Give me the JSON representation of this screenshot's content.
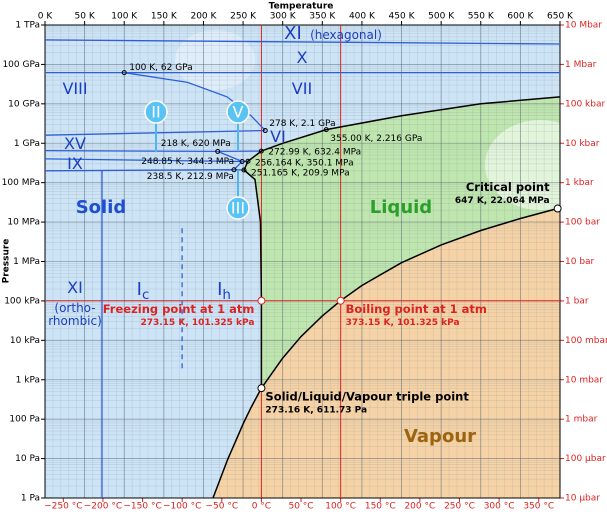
{
  "chart_data": {
    "type": "phase-diagram",
    "x_label": "Temperature",
    "y_label": "Pressure",
    "log_scale_y": true,
    "grid": true,
    "xlim": [
      0,
      650
    ],
    "xticks": [
      {
        "value": 0,
        "label": "0 K"
      },
      {
        "value": 50,
        "label": "50 K"
      },
      {
        "value": 100,
        "label": "100 K"
      },
      {
        "value": 150,
        "label": "150 K"
      },
      {
        "value": 200,
        "label": "200 K"
      },
      {
        "value": 250,
        "label": "250 K"
      },
      {
        "value": 300,
        "label": "300 K"
      },
      {
        "value": 350,
        "label": "350 K"
      },
      {
        "value": 400,
        "label": "400 K"
      },
      {
        "value": 450,
        "label": "450 K"
      },
      {
        "value": 500,
        "label": "500 K"
      },
      {
        "value": 550,
        "label": "550 K"
      },
      {
        "value": 600,
        "label": "600 K"
      },
      {
        "value": 650,
        "label": "650 K"
      }
    ],
    "x2lim": [
      -273.15,
      376.85
    ],
    "x2ticks": [
      {
        "value": -250,
        "label": "−250 °C"
      },
      {
        "value": -200,
        "label": "−200 °C"
      },
      {
        "value": -150,
        "label": "−150 °C"
      },
      {
        "value": -100,
        "label": "−100 °C"
      },
      {
        "value": -50,
        "label": "−50 °C"
      },
      {
        "value": 0,
        "label": "0 °C"
      },
      {
        "value": 50,
        "label": "50 °C"
      },
      {
        "value": 100,
        "label": "100 °C"
      },
      {
        "value": 150,
        "label": "150 °C"
      },
      {
        "value": 200,
        "label": "200 °C"
      },
      {
        "value": 250,
        "label": "250 °C"
      },
      {
        "value": 300,
        "label": "300 °C"
      },
      {
        "value": 350,
        "label": "350 °C"
      }
    ],
    "ylim": [
      1,
      1000000000000
    ],
    "yticks": [
      {
        "value": 1,
        "label": "1 Pa"
      },
      {
        "value": 10,
        "label": "10 Pa"
      },
      {
        "value": 100,
        "label": "100 Pa"
      },
      {
        "value": 1000,
        "label": "1 kPa"
      },
      {
        "value": 10000,
        "label": "10 kPa"
      },
      {
        "value": 100000,
        "label": "100 kPa"
      },
      {
        "value": 1000000,
        "label": "1 MPa"
      },
      {
        "value": 10000000,
        "label": "10 MPa"
      },
      {
        "value": 100000000,
        "label": "100 MPa"
      },
      {
        "value": 1000000000,
        "label": "1 GPa"
      },
      {
        "value": 10000000000,
        "label": "10 GPa"
      },
      {
        "value": 100000000000,
        "label": "100 GPa"
      },
      {
        "value": 1000000000000,
        "label": "1 TPa"
      }
    ],
    "y2lim": [
      1e-05,
      10000000
    ],
    "y2ticks": [
      {
        "value": 1e-05,
        "label": "10 µbar"
      },
      {
        "value": 0.0001,
        "label": "100 µbar"
      },
      {
        "value": 0.001,
        "label": "1 mbar"
      },
      {
        "value": 0.01,
        "label": "10 mbar"
      },
      {
        "value": 0.1,
        "label": "100 mbar"
      },
      {
        "value": 1,
        "label": "1 bar"
      },
      {
        "value": 10,
        "label": "10 bar"
      },
      {
        "value": 100,
        "label": "100 bar"
      },
      {
        "value": 1000,
        "label": "1 kbar"
      },
      {
        "value": 10000,
        "label": "10 kbar"
      },
      {
        "value": 100000,
        "label": "100 kbar"
      },
      {
        "value": 1000000,
        "label": "1 Mbar"
      },
      {
        "value": 10000000,
        "label": "10 Mbar"
      }
    ],
    "colors": {
      "solid": "#cde4f6",
      "liquid": "#bfe6ae",
      "vapour": "#f6d3a6",
      "boundary": "#000000",
      "phase_line": "#2f5fd8",
      "reference": "#dd2222"
    },
    "sublimation_curve": {
      "x": [
        212,
        230,
        250,
        260,
        273.16
      ],
      "y": [
        1,
        8.9,
        76,
        196,
        611.73
      ]
    },
    "boiling_curve": {
      "x": [
        273.16,
        300,
        323,
        350,
        373.15,
        400,
        450,
        500,
        550,
        600,
        647
      ],
      "y": [
        611.73,
        3537,
        12350,
        41680,
        101325,
        245800,
        932000,
        2640000,
        6120000,
        12300000,
        22064000
      ]
    },
    "melting_curve": {
      "x": [
        273.16,
        273.15,
        272,
        265,
        251.165,
        256.164,
        272.99,
        300,
        355,
        450,
        550,
        650
      ],
      "y": [
        611.73,
        101325,
        10000000,
        120000000,
        209900000,
        350100000,
        632400000,
        1000000000,
        2216000000,
        5000000000,
        10000000000,
        15000000000
      ]
    },
    "phase_lines": [
      {
        "x": [
          0,
          650
        ],
        "y": [
          420000000000,
          330000000000
        ]
      },
      {
        "x": [
          0,
          650
        ],
        "y": [
          62000000000,
          62000000000
        ]
      },
      {
        "x": [
          100,
          180,
          230,
          260,
          278
        ],
        "y": [
          62000000000,
          35000000000,
          15000000000,
          5000000000,
          2100000000
        ]
      },
      {
        "x": [
          0,
          278
        ],
        "y": [
          1600000000,
          2100000000
        ]
      },
      {
        "x": [
          0,
          218,
          272.99
        ],
        "y": [
          650000000,
          620000000,
          632400000
        ]
      },
      {
        "x": [
          0,
          248.85,
          256.164
        ],
        "y": [
          400000000,
          344300000,
          350100000
        ]
      },
      {
        "x": [
          0,
          238.5,
          251.165
        ],
        "y": [
          200000000,
          212900000,
          209900000
        ]
      },
      {
        "x": [
          218,
          248.85,
          238.5
        ],
        "y": [
          620000000,
          344300000,
          212900000
        ]
      },
      {
        "x": [
          72,
          72
        ],
        "y": [
          1,
          200000000
        ]
      },
      {
        "x": [
          173,
          173
        ],
        "y": [
          7000000,
          1600
        ],
        "dashed": true
      }
    ],
    "region_labels": [
      "Solid",
      "Liquid",
      "Vapour"
    ],
    "phase_labels": [
      {
        "text": "XI"
      },
      {
        "text": "(hexagonal)"
      },
      {
        "text": "X"
      },
      {
        "text": "VII"
      },
      {
        "text": "VIII"
      },
      {
        "text": "VI"
      },
      {
        "text": "XV"
      },
      {
        "text": "IX"
      },
      {
        "text": "XI"
      },
      {
        "text": "(ortho-"
      },
      {
        "text": "rhombic)"
      },
      {
        "text": "I",
        "sub": "c"
      },
      {
        "text": "I",
        "sub": "h"
      }
    ],
    "circled_labels": [
      "II",
      "V",
      "III"
    ],
    "points": [
      {
        "x": 100,
        "y": 62000000000,
        "label": "100 K, 62 GPa"
      },
      {
        "x": 278,
        "y": 2100000000,
        "label": "278 K, 2.1 GPa"
      },
      {
        "x": 218,
        "y": 620000000,
        "label": "218 K, 620 MPa"
      },
      {
        "x": 355,
        "y": 2216000000,
        "label": "355.00 K, 2.216 GPa"
      },
      {
        "x": 272.99,
        "y": 632400000,
        "label": "272.99 K, 632.4 MPa"
      },
      {
        "x": 248.85,
        "y": 344300000,
        "label": "248.85 K, 344.3 MPa"
      },
      {
        "x": 256.164,
        "y": 350100000,
        "label": "256.164 K, 350.1 MPa"
      },
      {
        "x": 238.5,
        "y": 212900000,
        "label": "238.5 K, 212.9 MPa"
      },
      {
        "x": 251.165,
        "y": 209900000,
        "label": "251.165 K, 209.9 MPa"
      },
      {
        "x": 647,
        "y": 22064000,
        "title": "Critical point",
        "label": "647 K, 22.064 MPa"
      },
      {
        "x": 273.15,
        "y": 101325,
        "title": "Freezing point at 1 atm",
        "label": "273.15 K, 101.325 kPa"
      },
      {
        "x": 373.15,
        "y": 101325,
        "title": "Boiling point at 1 atm",
        "label": "373.15 K, 101.325 kPa"
      },
      {
        "x": 273.16,
        "y": 611.73,
        "title": "Solid/Liquid/Vapour triple point",
        "label": "273.16 K, 611.73 Pa"
      }
    ]
  }
}
